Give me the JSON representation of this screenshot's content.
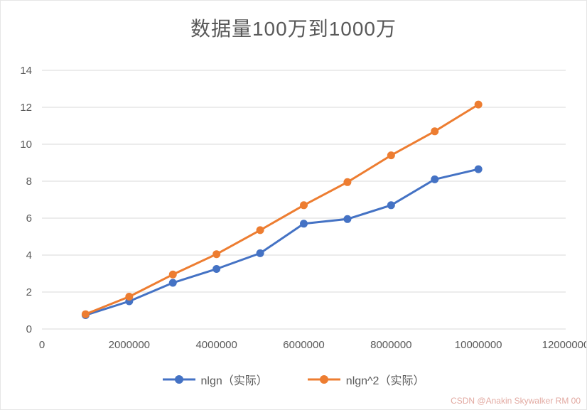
{
  "title": "数据量100万到1000万",
  "watermark": "CSDN @Anakin Skywalker RM 00",
  "colors": {
    "series1": "#4472C4",
    "series2": "#ED7D31",
    "grid": "#D9D9D9",
    "axis": "#D9D9D9",
    "text": "#595959"
  },
  "chart_data": {
    "type": "line",
    "title": "数据量100万到1000万",
    "x": [
      1000000,
      2000000,
      3000000,
      4000000,
      5000000,
      6000000,
      7000000,
      8000000,
      9000000,
      10000000
    ],
    "series": [
      {
        "name": "nlgn（实际）",
        "color": "#4472C4",
        "values": [
          0.75,
          1.5,
          2.5,
          3.25,
          4.1,
          5.7,
          5.95,
          6.7,
          8.1,
          8.65
        ]
      },
      {
        "name": "nlgn^2（实际）",
        "color": "#ED7D31",
        "values": [
          0.8,
          1.75,
          2.95,
          4.05,
          5.35,
          6.7,
          7.95,
          9.4,
          10.7,
          12.15
        ]
      }
    ],
    "xlabel": "",
    "ylabel": "",
    "xlim": [
      0,
      12000000
    ],
    "ylim": [
      0,
      14
    ],
    "x_ticks": [
      0,
      2000000,
      4000000,
      6000000,
      8000000,
      10000000,
      12000000
    ],
    "y_ticks": [
      0,
      2,
      4,
      6,
      8,
      10,
      12,
      14
    ],
    "grid": "horizontal",
    "legend_position": "bottom",
    "marker": "circle"
  }
}
